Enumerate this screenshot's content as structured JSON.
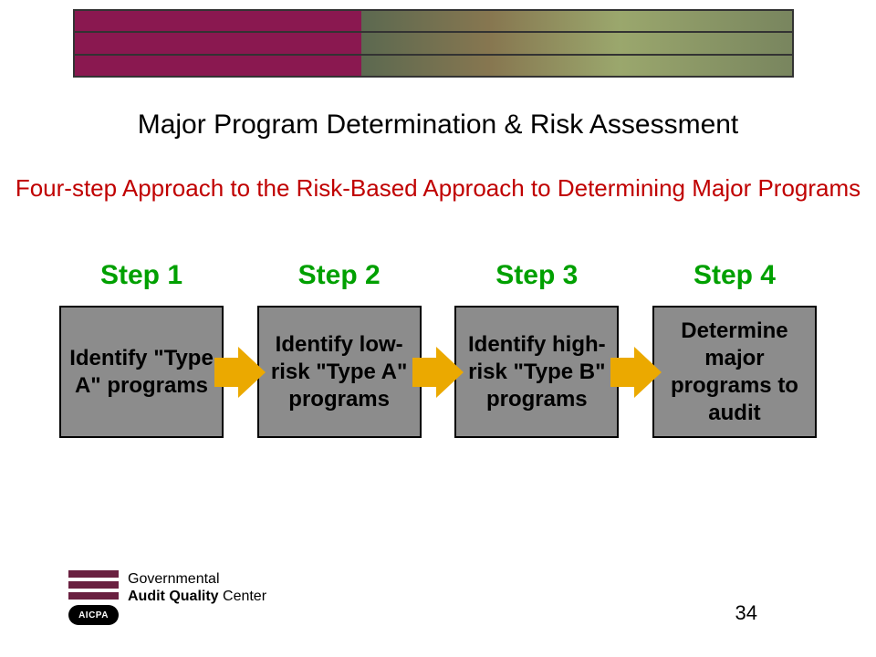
{
  "banner": {
    "border_color": "#333333",
    "left_color": "#8a1850",
    "right_gradient": [
      "#5a6b50",
      "#8a7a50",
      "#a0b070",
      "#7a8a60"
    ],
    "row_count": 3
  },
  "main_title": {
    "text": "Major Program Determination & Risk Assessment",
    "color": "#000000",
    "fontsize": 30
  },
  "subtitle": {
    "text": "Four-step Approach to the Risk-Based Approach to Determining Major Programs",
    "color": "#c00000",
    "fontsize": 26
  },
  "steps": {
    "header_color": "#00a000",
    "header_fontsize": 30,
    "box_bg": "#8c8c8c",
    "box_border": "#000000",
    "box_text_color": "#000000",
    "box_fontsize": 24,
    "arrow_color": "#eba900",
    "items": [
      {
        "header": "Step 1",
        "label": "Identify \"Type A\" programs"
      },
      {
        "header": "Step 2",
        "label": "Identify low-risk \"Type A\" programs"
      },
      {
        "header": "Step 3",
        "label": "Identify high-risk \"Type B\" programs"
      },
      {
        "header": "Step 4",
        "label": "Determine major programs to audit"
      }
    ]
  },
  "logo": {
    "bar_color": "#6a2040",
    "bar_count": 3,
    "badge_bg": "#000000",
    "badge_text": "AICPA",
    "line1": "Governmental",
    "line2_bold": "Audit Quality",
    "line2_rest": " Center"
  },
  "page_number": "34"
}
